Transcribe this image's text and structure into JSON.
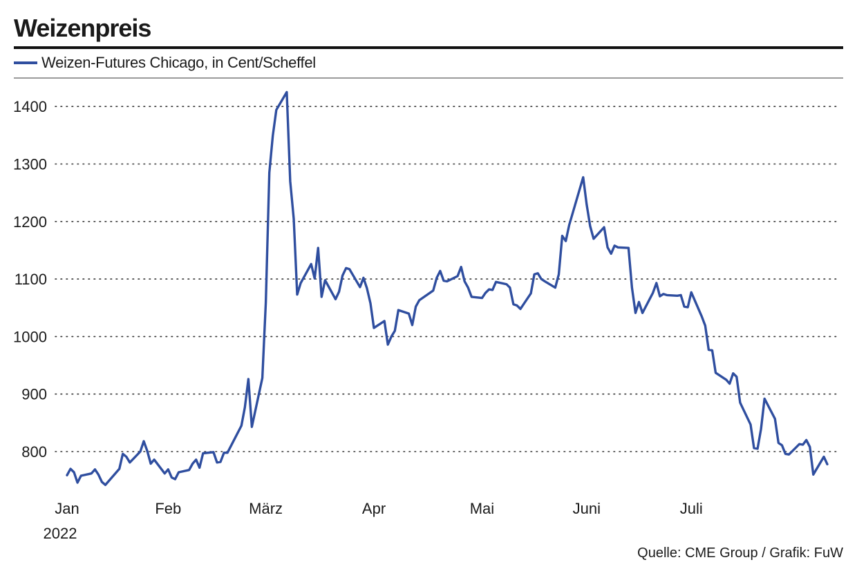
{
  "header": {
    "title": "Weizenpreis",
    "legend_label": "Weizen-Futures Chicago, in Cent/Scheffel",
    "source": "Quelle: CME Group / Grafik: FuW"
  },
  "colors": {
    "series": "#2f4e9f",
    "grid": "#333333",
    "rule": "#111111"
  },
  "chart_data": {
    "type": "line",
    "title": "Weizenpreis",
    "ylabel": "",
    "xlabel": "",
    "ylim": [
      730,
      1430
    ],
    "xlim": [
      "2022-01-03",
      "2022-07-29"
    ],
    "grid": true,
    "legend_position": "top-left",
    "y_ticks": [
      "800",
      "900",
      "1000",
      "1100",
      "1200",
      "1300",
      "1400"
    ],
    "x_ticks": [
      {
        "label": "Jan",
        "date": "2022-01-03"
      },
      {
        "label": "Feb",
        "date": "2022-02-01"
      },
      {
        "label": "März",
        "date": "2022-03-01"
      },
      {
        "label": "Apr",
        "date": "2022-04-01"
      },
      {
        "label": "Mai",
        "date": "2022-05-02"
      },
      {
        "label": "Juni",
        "date": "2022-06-01"
      },
      {
        "label": "Juli",
        "date": "2022-07-01"
      }
    ],
    "year_label": "2022",
    "series": [
      {
        "name": "Weizen-Futures Chicago, in Cent/Scheffel",
        "points": [
          [
            "2022-01-03",
            759
          ],
          [
            "2022-01-04",
            770
          ],
          [
            "2022-01-05",
            764
          ],
          [
            "2022-01-06",
            746
          ],
          [
            "2022-01-07",
            758
          ],
          [
            "2022-01-10",
            762
          ],
          [
            "2022-01-11",
            769
          ],
          [
            "2022-01-12",
            760
          ],
          [
            "2022-01-13",
            747
          ],
          [
            "2022-01-14",
            742
          ],
          [
            "2022-01-18",
            770
          ],
          [
            "2022-01-19",
            796
          ],
          [
            "2022-01-20",
            791
          ],
          [
            "2022-01-21",
            781
          ],
          [
            "2022-01-24",
            800
          ],
          [
            "2022-01-25",
            818
          ],
          [
            "2022-01-26",
            801
          ],
          [
            "2022-01-27",
            779
          ],
          [
            "2022-01-28",
            786
          ],
          [
            "2022-01-31",
            762
          ],
          [
            "2022-02-01",
            769
          ],
          [
            "2022-02-02",
            755
          ],
          [
            "2022-02-03",
            752
          ],
          [
            "2022-02-04",
            764
          ],
          [
            "2022-02-07",
            768
          ],
          [
            "2022-02-08",
            779
          ],
          [
            "2022-02-09",
            786
          ],
          [
            "2022-02-10",
            772
          ],
          [
            "2022-02-11",
            797
          ],
          [
            "2022-02-14",
            799
          ],
          [
            "2022-02-15",
            781
          ],
          [
            "2022-02-16",
            782
          ],
          [
            "2022-02-17",
            798
          ],
          [
            "2022-02-18",
            798
          ],
          [
            "2022-02-22",
            845
          ],
          [
            "2022-02-23",
            877
          ],
          [
            "2022-02-24",
            926
          ],
          [
            "2022-02-25",
            843
          ],
          [
            "2022-02-28",
            928
          ],
          [
            "2022-03-01",
            1059
          ],
          [
            "2022-03-02",
            1285
          ],
          [
            "2022-03-03",
            1349
          ],
          [
            "2022-03-04",
            1394
          ],
          [
            "2022-03-07",
            1425
          ],
          [
            "2022-03-08",
            1270
          ],
          [
            "2022-03-09",
            1205
          ],
          [
            "2022-03-10",
            1073
          ],
          [
            "2022-03-11",
            1093
          ],
          [
            "2022-03-14",
            1126
          ],
          [
            "2022-03-15",
            1101
          ],
          [
            "2022-03-16",
            1154
          ],
          [
            "2022-03-17",
            1069
          ],
          [
            "2022-03-18",
            1098
          ],
          [
            "2022-03-21",
            1065
          ],
          [
            "2022-03-22",
            1078
          ],
          [
            "2022-03-23",
            1106
          ],
          [
            "2022-03-24",
            1119
          ],
          [
            "2022-03-25",
            1117
          ],
          [
            "2022-03-28",
            1086
          ],
          [
            "2022-03-29",
            1102
          ],
          [
            "2022-03-30",
            1084
          ],
          [
            "2022-03-31",
            1058
          ],
          [
            "2022-04-01",
            1015
          ],
          [
            "2022-04-04",
            1027
          ],
          [
            "2022-04-05",
            986
          ],
          [
            "2022-04-06",
            1000
          ],
          [
            "2022-04-07",
            1010
          ],
          [
            "2022-04-08",
            1046
          ],
          [
            "2022-04-11",
            1040
          ],
          [
            "2022-04-12",
            1020
          ],
          [
            "2022-04-13",
            1052
          ],
          [
            "2022-04-14",
            1063
          ],
          [
            "2022-04-18",
            1080
          ],
          [
            "2022-04-19",
            1102
          ],
          [
            "2022-04-20",
            1114
          ],
          [
            "2022-04-21",
            1097
          ],
          [
            "2022-04-22",
            1096
          ],
          [
            "2022-04-25",
            1105
          ],
          [
            "2022-04-26",
            1121
          ],
          [
            "2022-04-27",
            1096
          ],
          [
            "2022-04-28",
            1085
          ],
          [
            "2022-04-29",
            1069
          ],
          [
            "2022-05-02",
            1067
          ],
          [
            "2022-05-03",
            1076
          ],
          [
            "2022-05-04",
            1082
          ],
          [
            "2022-05-05",
            1081
          ],
          [
            "2022-05-06",
            1095
          ],
          [
            "2022-05-09",
            1091
          ],
          [
            "2022-05-10",
            1085
          ],
          [
            "2022-05-11",
            1056
          ],
          [
            "2022-05-12",
            1054
          ],
          [
            "2022-05-13",
            1048
          ],
          [
            "2022-05-16",
            1075
          ],
          [
            "2022-05-17",
            1108
          ],
          [
            "2022-05-18",
            1110
          ],
          [
            "2022-05-19",
            1100
          ],
          [
            "2022-05-20",
            1096
          ],
          [
            "2022-05-23",
            1085
          ],
          [
            "2022-05-24",
            1108
          ],
          [
            "2022-05-25",
            1175
          ],
          [
            "2022-05-26",
            1166
          ],
          [
            "2022-05-27",
            1194
          ],
          [
            "2022-05-31",
            1277
          ],
          [
            "2022-06-01",
            1230
          ],
          [
            "2022-06-02",
            1192
          ],
          [
            "2022-06-03",
            1170
          ],
          [
            "2022-06-06",
            1190
          ],
          [
            "2022-06-07",
            1155
          ],
          [
            "2022-06-08",
            1144
          ],
          [
            "2022-06-09",
            1158
          ],
          [
            "2022-06-10",
            1155
          ],
          [
            "2022-06-13",
            1154
          ],
          [
            "2022-06-14",
            1085
          ],
          [
            "2022-06-15",
            1041
          ],
          [
            "2022-06-16",
            1060
          ],
          [
            "2022-06-17",
            1041
          ],
          [
            "2022-06-20",
            1076
          ],
          [
            "2022-06-21",
            1093
          ],
          [
            "2022-06-22",
            1070
          ],
          [
            "2022-06-23",
            1074
          ],
          [
            "2022-06-24",
            1072
          ],
          [
            "2022-06-27",
            1071
          ],
          [
            "2022-06-28",
            1072
          ],
          [
            "2022-06-29",
            1052
          ],
          [
            "2022-06-30",
            1051
          ],
          [
            "2022-07-01",
            1077
          ],
          [
            "2022-07-04",
            1035
          ],
          [
            "2022-07-05",
            1019
          ],
          [
            "2022-07-06",
            977
          ],
          [
            "2022-07-07",
            976
          ],
          [
            "2022-07-08",
            937
          ],
          [
            "2022-07-11",
            925
          ],
          [
            "2022-07-12",
            918
          ],
          [
            "2022-07-13",
            936
          ],
          [
            "2022-07-14",
            930
          ],
          [
            "2022-07-15",
            885
          ],
          [
            "2022-07-18",
            847
          ],
          [
            "2022-07-19",
            806
          ],
          [
            "2022-07-20",
            805
          ],
          [
            "2022-07-21",
            839
          ],
          [
            "2022-07-22",
            892
          ],
          [
            "2022-07-25",
            857
          ],
          [
            "2022-07-26",
            815
          ],
          [
            "2022-07-27",
            811
          ],
          [
            "2022-07-28",
            796
          ],
          [
            "2022-07-29",
            795
          ],
          [
            "2022-08-01",
            813
          ],
          [
            "2022-08-02",
            812
          ],
          [
            "2022-08-03",
            820
          ],
          [
            "2022-08-04",
            808
          ],
          [
            "2022-08-05",
            760
          ],
          [
            "2022-08-08",
            791
          ],
          [
            "2022-08-09",
            778
          ]
        ]
      }
    ]
  }
}
